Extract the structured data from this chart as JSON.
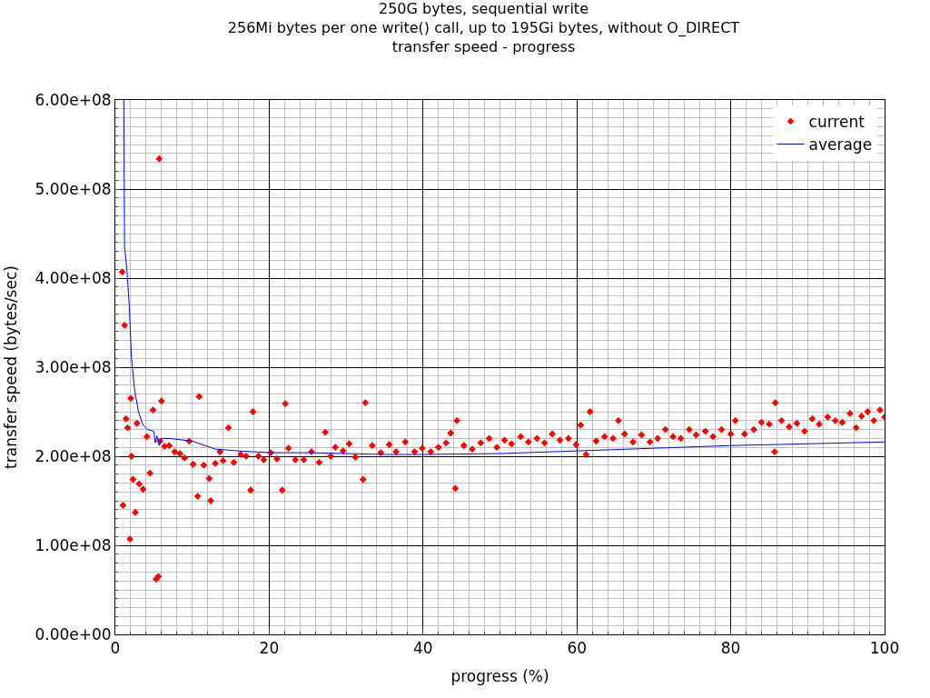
{
  "chart_data": {
    "type": "scatter",
    "title": "250G bytes, sequential write",
    "subtitle": "256Mi bytes per one write() call, up to 195Gi bytes, without O_DIRECT\ntransfer speed - progress",
    "xlabel": "progress (%)",
    "ylabel": "transfer speed (bytes/sec)",
    "xlim": [
      0,
      100
    ],
    "xticks": [
      0,
      20,
      40,
      60,
      80,
      100
    ],
    "ylim": [
      0,
      600000000
    ],
    "yticks": [
      {
        "value": 0,
        "label": "0.00e+00"
      },
      {
        "value": 100000000,
        "label": "1.00e+08"
      },
      {
        "value": 200000000,
        "label": "2.00e+08"
      },
      {
        "value": 300000000,
        "label": "3.00e+08"
      },
      {
        "value": 400000000,
        "label": "4.00e+08"
      },
      {
        "value": 500000000,
        "label": "5.00e+08"
      },
      {
        "value": 600000000,
        "label": "6.00e+08"
      }
    ],
    "grid": true,
    "legend": "top right",
    "series": [
      {
        "name": "current",
        "marker": "diamond",
        "color": "#ff0000",
        "x": [
          0.9,
          1.2,
          1.0,
          1.4,
          1.6,
          1.9,
          2.0,
          2.1,
          2.3,
          2.6,
          2.8,
          3.1,
          3.6,
          4.1,
          4.5,
          4.9,
          5.3,
          5.6,
          5.8,
          6.0,
          5.7,
          6.4,
          7.0,
          7.7,
          8.4,
          9.0,
          9.6,
          10.1,
          10.7,
          10.9,
          11.5,
          12.2,
          12.4,
          13.0,
          13.6,
          14.0,
          14.7,
          15.4,
          16.3,
          17.0,
          17.6,
          17.9,
          18.6,
          19.3,
          20.2,
          21.0,
          21.7,
          22.1,
          22.5,
          23.4,
          24.5,
          25.5,
          26.5,
          27.3,
          28.0,
          28.6,
          29.6,
          30.4,
          31.2,
          32.2,
          32.5,
          33.4,
          34.5,
          35.6,
          36.5,
          37.7,
          38.9,
          39.9,
          41.0,
          42.0,
          43.0,
          43.6,
          44.2,
          44.4,
          45.3,
          46.4,
          47.5,
          48.6,
          49.6,
          50.6,
          51.5,
          52.7,
          53.7,
          54.8,
          55.8,
          56.8,
          57.8,
          58.9,
          59.9,
          60.5,
          61.2,
          61.7,
          62.5,
          63.6,
          64.7,
          65.4,
          66.2,
          67.3,
          68.4,
          69.5,
          70.5,
          71.5,
          72.5,
          73.5,
          74.6,
          75.5,
          76.7,
          77.7,
          78.8,
          80.0,
          80.6,
          81.8,
          83.0,
          84.0,
          85.0,
          85.8,
          85.7,
          86.6,
          87.6,
          88.6,
          89.6,
          90.6,
          91.5,
          92.6,
          93.6,
          94.5,
          95.5,
          96.3,
          97.0,
          97.8,
          98.6,
          99.4,
          100
        ],
        "values": [
          407000000,
          347000000,
          145000000,
          242000000,
          232000000,
          107000000,
          265000000,
          200000000,
          174000000,
          137000000,
          237000000,
          169000000,
          163000000,
          222000000,
          181000000,
          252000000,
          62000000,
          65000000,
          217000000,
          262000000,
          534000000,
          211000000,
          212000000,
          205000000,
          203000000,
          198000000,
          217000000,
          191000000,
          155000000,
          267000000,
          190000000,
          175000000,
          150000000,
          192000000,
          205000000,
          195000000,
          232000000,
          193000000,
          202000000,
          200000000,
          162000000,
          250000000,
          200000000,
          196000000,
          204000000,
          197000000,
          162000000,
          259000000,
          209000000,
          196000000,
          196000000,
          205000000,
          193000000,
          227000000,
          200000000,
          210000000,
          206000000,
          214000000,
          199000000,
          174000000,
          260000000,
          212000000,
          204000000,
          213000000,
          205000000,
          216000000,
          205000000,
          209000000,
          205000000,
          210000000,
          215000000,
          226000000,
          164000000,
          240000000,
          212000000,
          208000000,
          215000000,
          220000000,
          210000000,
          218000000,
          214000000,
          222000000,
          216000000,
          220000000,
          215000000,
          225000000,
          218000000,
          220000000,
          213000000,
          235000000,
          202000000,
          250000000,
          217000000,
          222000000,
          220000000,
          240000000,
          225000000,
          216000000,
          224000000,
          216000000,
          220000000,
          230000000,
          222000000,
          220000000,
          230000000,
          224000000,
          228000000,
          222000000,
          230000000,
          225000000,
          240000000,
          225000000,
          230000000,
          238000000,
          236000000,
          260000000,
          205000000,
          240000000,
          233000000,
          237000000,
          228000000,
          242000000,
          236000000,
          244000000,
          240000000,
          238000000,
          248000000,
          232000000,
          245000000,
          250000000,
          240000000,
          252000000,
          244000000
        ]
      },
      {
        "name": "average",
        "type": "line",
        "marker": "none",
        "line_style": "solid",
        "color": "#0000ff",
        "x": [
          1.1,
          1.2,
          1.5,
          1.8,
          2.1,
          2.5,
          3.0,
          3.6,
          4.2,
          5.0,
          5.2,
          5.4,
          5.7,
          6.0,
          7,
          10,
          13,
          16,
          20,
          25,
          30,
          35,
          40,
          50,
          60,
          70,
          80,
          90,
          100
        ],
        "values": [
          600000000,
          435000000,
          410000000,
          370000000,
          310000000,
          275000000,
          250000000,
          235000000,
          230000000,
          228000000,
          215000000,
          223000000,
          212000000,
          220000000,
          220000000,
          217000000,
          208000000,
          206000000,
          204000000,
          204000000,
          203000000,
          202000000,
          202000000,
          203000000,
          206000000,
          209000000,
          212000000,
          214000000,
          216000000
        ]
      }
    ]
  }
}
